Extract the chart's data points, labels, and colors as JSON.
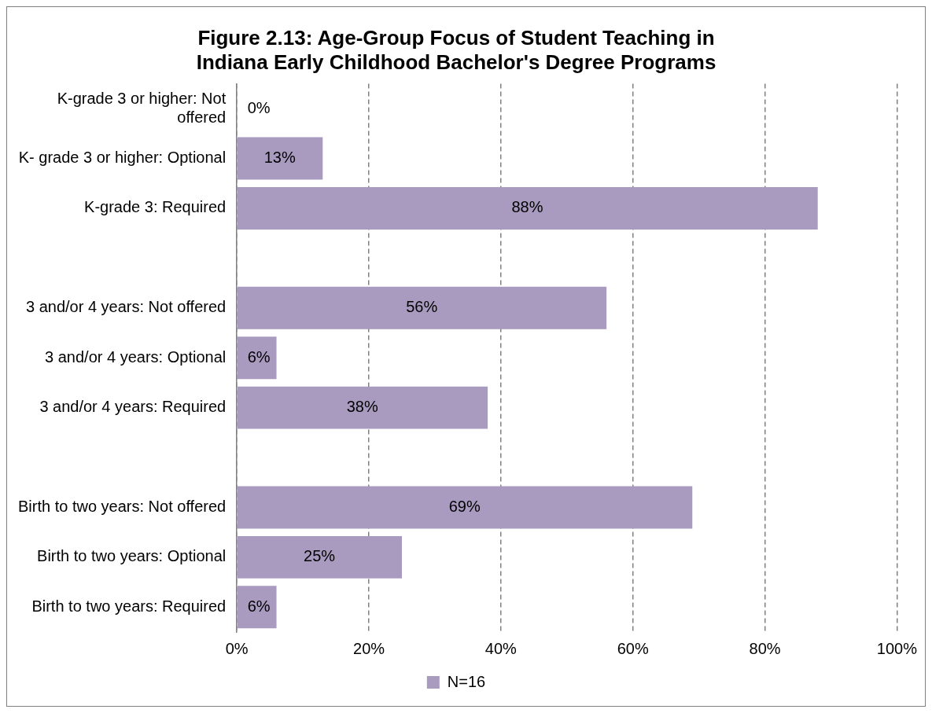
{
  "chart_data": {
    "type": "bar",
    "orientation": "horizontal",
    "title": "Figure 2.13: Age-Group Focus of Student Teaching in Indiana Early Childhood Bachelor's Degree Programs",
    "categories": [
      "K-grade 3 or higher: Not offered",
      "K- grade 3 or higher: Optional",
      "K-grade 3: Required",
      null,
      "3 and/or 4 years: Not offered",
      "3 and/or 4 years: Optional",
      "3 and/or 4 years: Required",
      null,
      "Birth to two years: Not offered",
      "Birth to two years: Optional",
      "Birth to two years: Required"
    ],
    "series": [
      {
        "name": "N=16",
        "color": "#a99bc0",
        "values": [
          0,
          13,
          88,
          null,
          56,
          6,
          38,
          null,
          69,
          25,
          6
        ],
        "value_labels": [
          "0%",
          "13%",
          "88%",
          null,
          "56%",
          "6%",
          "38%",
          null,
          "69%",
          "25%",
          "6%"
        ]
      }
    ],
    "xlim": [
      0,
      100
    ],
    "xticks": [
      {
        "value": 0,
        "label": "0%"
      },
      {
        "value": 20,
        "label": "20%"
      },
      {
        "value": 40,
        "label": "40%"
      },
      {
        "value": 60,
        "label": "60%"
      },
      {
        "value": 80,
        "label": "80%"
      },
      {
        "value": 100,
        "label": "100%"
      }
    ],
    "grid": "x",
    "legend": "bottom"
  }
}
